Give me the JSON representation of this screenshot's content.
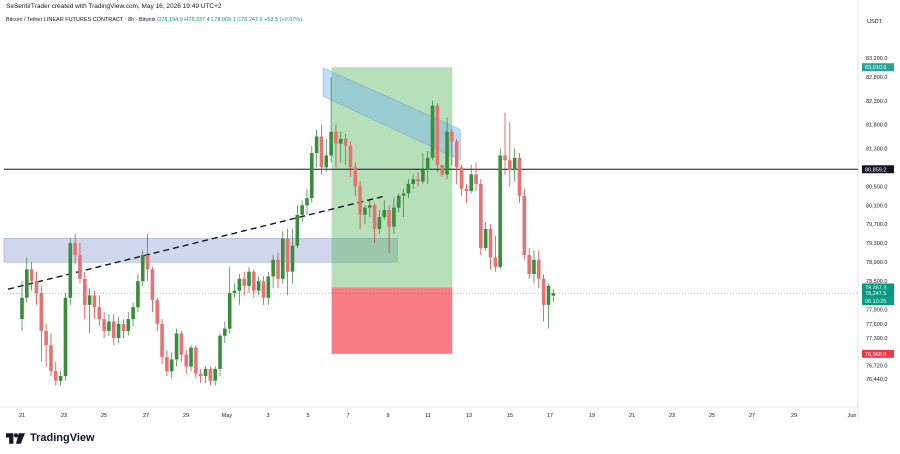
{
  "header": {
    "text": "SeSentirTrader created with TradingView.com, May 16, 2026 19:49 UTC+2"
  },
  "symbol": {
    "name": "Bitcoin / Tether LINEAR FUTURES CONTRACT · 8h · Bitunix",
    "ohlc": "O78,194.0  H78,337.4  L78,069.1  C78,247.5  +53.5 (+0.07%)"
  },
  "currency": "USDT",
  "brand": {
    "name": "TradingView",
    "logo_icon": "tradingview-logo-icon"
  },
  "chart_data": {
    "type": "candlestick",
    "symbol": "BTCUSDT.P",
    "timeframe": "8h",
    "x_labels": [
      "21",
      "23",
      "25",
      "27",
      "29",
      "May",
      "3",
      "5",
      "7",
      "9",
      "11",
      "13",
      "15",
      "17",
      "19",
      "21",
      "23",
      "25",
      "27",
      "29",
      "Jun"
    ],
    "y_ticks": [
      83200,
      82800,
      82300,
      81800,
      81300,
      80500,
      80100,
      79700,
      79300,
      78900,
      78500,
      77900,
      77600,
      77300,
      76720,
      76440
    ],
    "ylim": [
      76100,
      83500
    ],
    "price_labels": [
      {
        "text": "83,010.6",
        "value": 83010.6,
        "color": "#26a69a"
      },
      {
        "text": "80,859.2",
        "value": 80859.2,
        "color": "#131722"
      },
      {
        "text": "78,367.3",
        "value": 78367.3,
        "color": "#089981"
      },
      {
        "text": "78,247.5",
        "value": 78247.5,
        "color": "#089981"
      },
      {
        "text": "06:10:25",
        "value": 78080,
        "color": "#089981"
      },
      {
        "text": "76,968.0",
        "value": 76968,
        "color": "#f23645"
      }
    ],
    "horizontal_line": 80859.2,
    "demand_zone": {
      "from_index": 0,
      "to_index": 77,
      "top": 79400,
      "bottom": 78900
    },
    "channel_band": {
      "from_index": 40,
      "to_index": 87,
      "start_top": 83000,
      "start_bottom": 82400,
      "end_top": 81700,
      "end_bottom": 81050
    },
    "trendline": {
      "from_index": 0,
      "to_index": 51,
      "from_value": 78330,
      "to_value": 80300
    },
    "long_position": {
      "from_index": 64,
      "to_index": 87,
      "entry": 78367.3,
      "target": 83010.6,
      "stop": 76968.0
    },
    "candles": [
      [
        77700,
        78150,
        77450,
        78500
      ],
      [
        78150,
        78750,
        78050,
        79000
      ],
      [
        78750,
        78500,
        78300,
        78900
      ],
      [
        78500,
        78250,
        78000,
        78700
      ],
      [
        78250,
        77450,
        76800,
        78400
      ],
      [
        77450,
        77150,
        76700,
        77600
      ],
      [
        77150,
        76600,
        76500,
        77400
      ],
      [
        76600,
        76400,
        76300,
        76800
      ],
      [
        76400,
        76500,
        76300,
        76600
      ],
      [
        76500,
        78150,
        76400,
        78250
      ],
      [
        78150,
        79300,
        78000,
        79400
      ],
      [
        79300,
        79050,
        78850,
        79500
      ],
      [
        79050,
        78550,
        78450,
        79300
      ],
      [
        78550,
        78000,
        77700,
        78700
      ],
      [
        78000,
        78200,
        77400,
        78350
      ],
      [
        78200,
        77950,
        77700,
        78300
      ],
      [
        77950,
        77700,
        77550,
        78200
      ],
      [
        77700,
        77450,
        77300,
        77850
      ],
      [
        77450,
        77650,
        77350,
        77800
      ],
      [
        77650,
        77300,
        77150,
        77800
      ],
      [
        77300,
        77600,
        77200,
        77750
      ],
      [
        77600,
        77450,
        77300,
        77700
      ],
      [
        77450,
        77700,
        77350,
        77850
      ],
      [
        77700,
        77950,
        77550,
        78050
      ],
      [
        77950,
        78500,
        77850,
        78650
      ],
      [
        78500,
        79050,
        78400,
        79150
      ],
      [
        79050,
        78750,
        78500,
        79500
      ],
      [
        78750,
        78100,
        77850,
        78800
      ],
      [
        78100,
        77600,
        77450,
        78150
      ],
      [
        77600,
        76900,
        76750,
        77700
      ],
      [
        76900,
        76600,
        76500,
        77050
      ],
      [
        76600,
        76850,
        76450,
        77000
      ],
      [
        76850,
        77400,
        76700,
        77500
      ],
      [
        77400,
        76950,
        76800,
        77450
      ],
      [
        76950,
        76700,
        76550,
        77050
      ],
      [
        76700,
        77100,
        76600,
        77150
      ],
      [
        77100,
        76550,
        76450,
        77150
      ],
      [
        76550,
        76500,
        76350,
        76650
      ],
      [
        76500,
        76650,
        76350,
        76700
      ],
      [
        76650,
        76400,
        76300,
        76700
      ],
      [
        76400,
        76650,
        76300,
        76700
      ],
      [
        76650,
        77350,
        76500,
        77400
      ],
      [
        77350,
        77500,
        77200,
        77650
      ],
      [
        77500,
        78250,
        77400,
        78800
      ],
      [
        78250,
        78300,
        78150,
        78450
      ],
      [
        78300,
        78550,
        78000,
        78650
      ],
      [
        78550,
        78400,
        78200,
        78700
      ],
      [
        78400,
        78700,
        78250,
        78800
      ],
      [
        78700,
        78300,
        78150,
        78750
      ],
      [
        78300,
        78500,
        78200,
        78600
      ],
      [
        78500,
        78150,
        78000,
        78600
      ],
      [
        78150,
        78600,
        78000,
        78700
      ],
      [
        78600,
        78950,
        78350,
        79050
      ],
      [
        78950,
        78550,
        78350,
        79100
      ],
      [
        78550,
        79400,
        78450,
        79550
      ],
      [
        79400,
        78700,
        78200,
        79600
      ],
      [
        78700,
        79250,
        78450,
        79600
      ],
      [
        79250,
        79900,
        79200,
        80100
      ],
      [
        79900,
        80100,
        79750,
        80200
      ],
      [
        80100,
        80250,
        79900,
        80450
      ],
      [
        80250,
        81200,
        80150,
        81350
      ],
      [
        81200,
        81550,
        80900,
        81700
      ],
      [
        81550,
        80900,
        80750,
        81800
      ],
      [
        80900,
        81150,
        80800,
        81500
      ],
      [
        81150,
        81650,
        81000,
        82800
      ],
      [
        81650,
        81400,
        80900,
        81800
      ],
      [
        81400,
        81500,
        81000,
        81650
      ],
      [
        81500,
        81350,
        80950,
        81600
      ],
      [
        81350,
        80900,
        80700,
        81450
      ],
      [
        80900,
        80500,
        80300,
        81000
      ],
      [
        80500,
        79900,
        79600,
        80600
      ],
      [
        79900,
        80050,
        79700,
        80100
      ],
      [
        80050,
        80100,
        79850,
        80200
      ],
      [
        80100,
        79600,
        79300,
        80150
      ],
      [
        79600,
        79850,
        79500,
        80000
      ],
      [
        79850,
        80000,
        79800,
        80200
      ],
      [
        80000,
        79650,
        79100,
        80100
      ],
      [
        79650,
        80050,
        79500,
        80250
      ],
      [
        80050,
        80300,
        79950,
        80350
      ],
      [
        80300,
        80350,
        79850,
        80450
      ],
      [
        80350,
        80550,
        80250,
        80650
      ],
      [
        80550,
        80650,
        80450,
        80750
      ],
      [
        80650,
        80600,
        80500,
        80800
      ],
      [
        80600,
        80850,
        80550,
        81200
      ],
      [
        80850,
        81100,
        80550,
        81250
      ],
      [
        81100,
        82200,
        81050,
        82300
      ],
      [
        82200,
        80950,
        80800,
        82250
      ],
      [
        80950,
        80750,
        80700,
        80950
      ],
      [
        80750,
        81650,
        80650,
        81950
      ],
      [
        81650,
        81450,
        80950,
        81700
      ],
      [
        81450,
        80900,
        80550,
        81500
      ],
      [
        80900,
        80450,
        80300,
        80950
      ],
      [
        80450,
        80400,
        80150,
        80550
      ],
      [
        80400,
        80750,
        80350,
        80950
      ],
      [
        80750,
        80550,
        80400,
        81000
      ],
      [
        80550,
        79200,
        79050,
        80650
      ],
      [
        79200,
        79600,
        79150,
        79750
      ],
      [
        79600,
        79000,
        78750,
        79700
      ],
      [
        79000,
        78800,
        78700,
        79450
      ],
      [
        78800,
        81150,
        78750,
        81300
      ],
      [
        81150,
        81050,
        80750,
        82050
      ],
      [
        81050,
        80850,
        80500,
        81850
      ],
      [
        80850,
        81100,
        80600,
        81300
      ],
      [
        81100,
        80300,
        80150,
        81200
      ],
      [
        80300,
        79050,
        78950,
        80450
      ],
      [
        79050,
        78650,
        78550,
        79200
      ],
      [
        78650,
        78950,
        78450,
        79150
      ],
      [
        78950,
        78550,
        78350,
        79150
      ],
      [
        78550,
        78000,
        77650,
        78650
      ],
      [
        78000,
        78400,
        77500,
        78450
      ],
      [
        78194,
        78247.5,
        78069.1,
        78337.4
      ]
    ]
  }
}
